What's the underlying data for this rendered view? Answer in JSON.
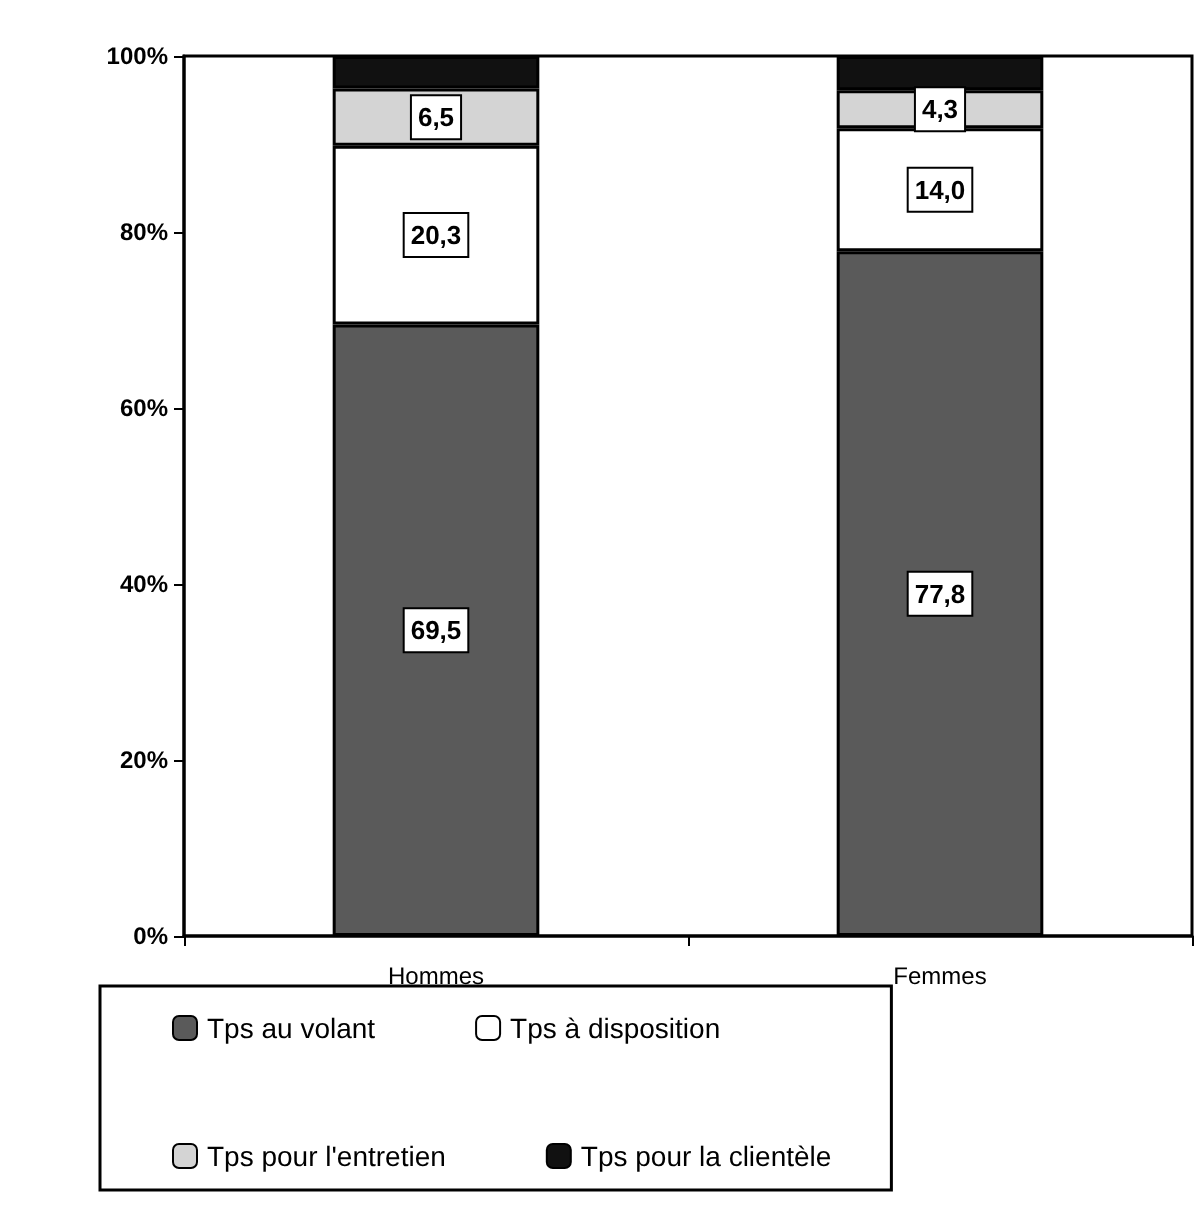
{
  "chart_data": {
    "type": "bar",
    "stacked": true,
    "categories": [
      "Hommes",
      "Femmes"
    ],
    "series": [
      {
        "name": "Tps au volant",
        "color": "#5a5a5a",
        "values": [
          69.5,
          77.8
        ],
        "value_labels": [
          "69,5",
          "77,8"
        ]
      },
      {
        "name": "Tps à disposition",
        "color": "#ffffff",
        "values": [
          20.3,
          14.0
        ],
        "value_labels": [
          "20,3",
          "14,0"
        ]
      },
      {
        "name": "Tps pour l'entretien",
        "color": "#d4d4d4",
        "values": [
          6.5,
          4.3
        ],
        "value_labels": [
          "6,5",
          "4,3"
        ]
      },
      {
        "name": "Tps pour la clientèle",
        "color": "#111111",
        "values": [
          3.7,
          3.9
        ],
        "value_labels": [
          null,
          null
        ]
      }
    ],
    "ylim": [
      0,
      100
    ],
    "yticks": [
      {
        "value": 0,
        "label": "0%"
      },
      {
        "value": 20,
        "label": "20%"
      },
      {
        "value": 40,
        "label": "40%"
      },
      {
        "value": 60,
        "label": "60%"
      },
      {
        "value": 80,
        "label": "80%"
      },
      {
        "value": 100,
        "label": "100%"
      }
    ],
    "grid": false,
    "legend": "bottom"
  }
}
